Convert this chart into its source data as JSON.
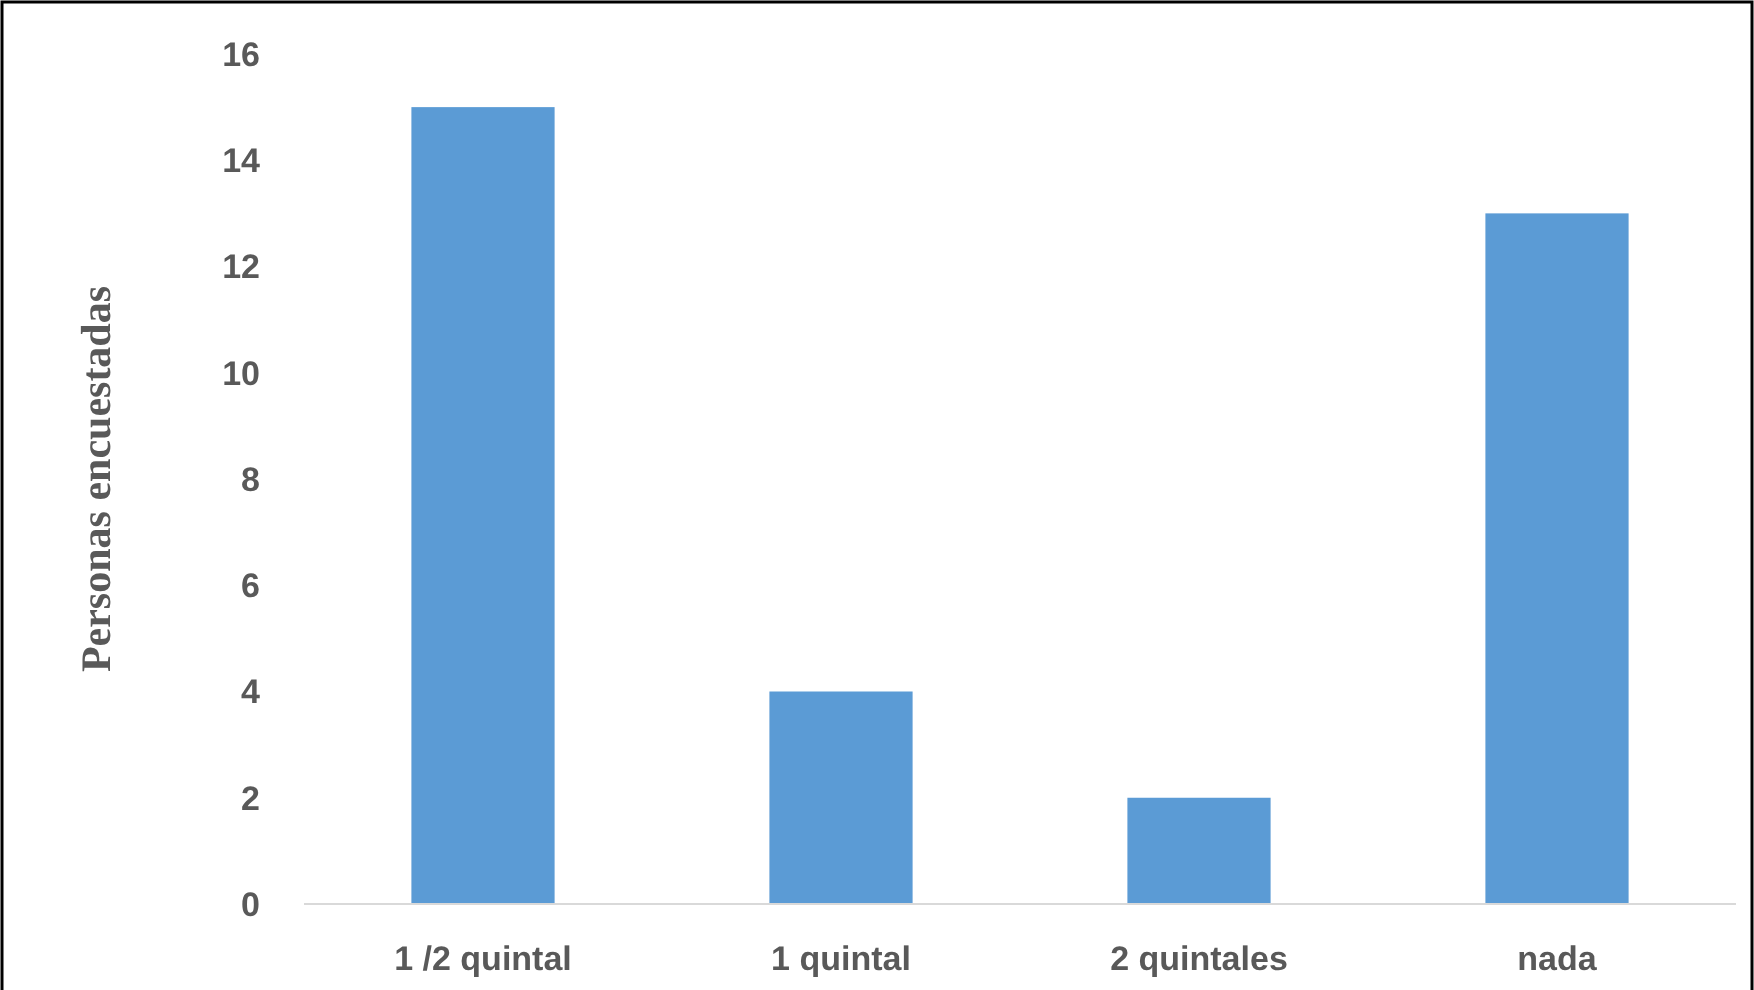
{
  "chart_data": {
    "type": "bar",
    "ylabel": "Personas encuestadas",
    "categories": [
      "1 /2 quintal",
      "1 quintal",
      "2 quintales",
      "nada"
    ],
    "values": [
      15,
      4,
      2,
      13
    ],
    "color": "#5b9bd5",
    "ylim": [
      0,
      16
    ],
    "yticks": [
      0,
      2,
      4,
      6,
      8,
      10,
      12,
      14,
      16
    ],
    "grid": false
  }
}
